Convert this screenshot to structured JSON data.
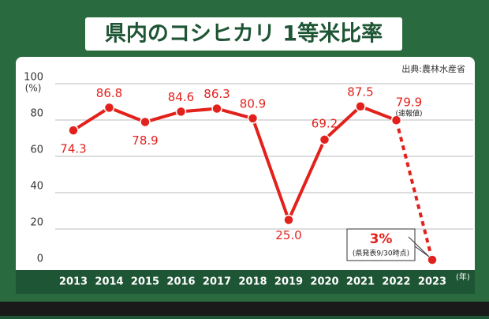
{
  "chart_data": {
    "type": "line",
    "title": "県内のコシヒカリ 1等米比率",
    "source": "出典:農林水産省",
    "y_unit": "(%)",
    "x_unit": "(年)",
    "categories": [
      "2013",
      "2014",
      "2015",
      "2016",
      "2017",
      "2018",
      "2019",
      "2020",
      "2021",
      "2022",
      "2023"
    ],
    "series": [
      {
        "color": "#e3211c",
        "values": [
          74.3,
          86.8,
          78.9,
          84.6,
          86.3,
          80.9,
          25.0,
          69.2,
          87.5,
          79.9,
          3
        ],
        "value_labels": [
          "74.3",
          "86.8",
          "78.9",
          "84.6",
          "86.3",
          "80.9",
          "25.0",
          "69.2",
          "87.5",
          "79.9",
          "3%"
        ],
        "dashed_segments": [
          10
        ]
      }
    ],
    "annotations": {
      "preliminary": "(速報値)",
      "callout_note": "(県発表9/30時点)"
    },
    "ylim": [
      0,
      100
    ],
    "yticks": [
      0,
      20,
      40,
      60,
      80,
      100
    ],
    "grid": true
  }
}
